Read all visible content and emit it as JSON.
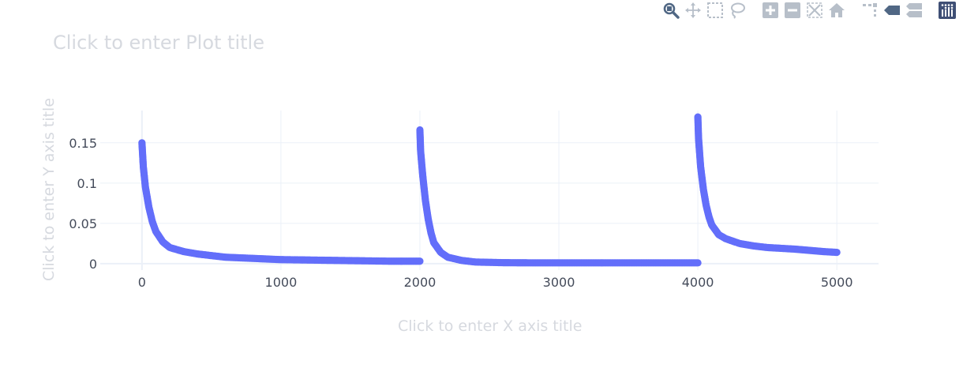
{
  "modebar": {
    "buttons": [
      {
        "name": "zoom-icon",
        "title": "Zoom",
        "active": true
      },
      {
        "name": "pan-icon",
        "title": "Pan"
      },
      {
        "name": "box-select-icon",
        "title": "Box Select"
      },
      {
        "name": "lasso-select-icon",
        "title": "Lasso Select"
      },
      {
        "name": "zoom-in-icon",
        "title": "Zoom in"
      },
      {
        "name": "zoom-out-icon",
        "title": "Zoom out"
      },
      {
        "name": "autoscale-icon",
        "title": "Autoscale"
      },
      {
        "name": "reset-axes-icon",
        "title": "Reset axes"
      },
      {
        "name": "spike-lines-icon",
        "title": "Toggle Spike Lines"
      },
      {
        "name": "hover-closest-icon",
        "title": "Show closest data on hover"
      },
      {
        "name": "hover-compare-icon",
        "title": "Compare data on hover"
      },
      {
        "name": "plotly-logo-icon",
        "title": "Produced with Plotly"
      }
    ]
  },
  "placeholders": {
    "plot_title": "Click to enter Plot title",
    "x_title": "Click to enter X axis title",
    "y_title": "Click to enter Y axis title"
  },
  "chart_data": {
    "type": "scatter",
    "title": "",
    "xlabel": "",
    "ylabel": "",
    "xlim": [
      -300,
      5300
    ],
    "ylim": [
      -0.008,
      0.19
    ],
    "x_ticks": [
      0,
      1000,
      2000,
      3000,
      4000,
      5000
    ],
    "x_tick_labels": [
      "0",
      "1000",
      "2000",
      "3000",
      "4000",
      "5000"
    ],
    "y_ticks": [
      0,
      0.05,
      0.1,
      0.15
    ],
    "y_tick_labels": [
      "0",
      "0.05",
      "0.1",
      "0.15"
    ],
    "grid": true,
    "colors": {
      "series": "#636efa",
      "grid": "#ebf0f8",
      "zeroline": "#ebf0f8"
    },
    "series": [
      {
        "x": [
          0,
          10,
          25,
          50,
          75,
          100,
          150,
          200,
          300,
          400,
          500,
          600,
          800,
          1000,
          1200,
          1400,
          1600,
          1800,
          2000
        ],
        "y": [
          0.15,
          0.12,
          0.095,
          0.07,
          0.052,
          0.04,
          0.027,
          0.02,
          0.015,
          0.012,
          0.01,
          0.008,
          0.0065,
          0.005,
          0.0045,
          0.004,
          0.0035,
          0.003,
          0.003
        ]
      },
      {
        "x": [
          2000,
          2005,
          2020,
          2040,
          2060,
          2080,
          2100,
          2150,
          2200,
          2300,
          2400,
          2600,
          2800,
          3000,
          3500,
          4000
        ],
        "y": [
          0.166,
          0.14,
          0.11,
          0.078,
          0.055,
          0.038,
          0.026,
          0.014,
          0.008,
          0.004,
          0.002,
          0.0012,
          0.001,
          0.001,
          0.001,
          0.001
        ]
      },
      {
        "x": [
          4000,
          4005,
          4020,
          4040,
          4060,
          4080,
          4100,
          4150,
          4200,
          4300,
          4400,
          4500,
          4600,
          4700,
          4800,
          4900,
          5000
        ],
        "y": [
          0.182,
          0.155,
          0.12,
          0.092,
          0.072,
          0.058,
          0.048,
          0.036,
          0.031,
          0.025,
          0.022,
          0.02,
          0.019,
          0.018,
          0.0165,
          0.015,
          0.014
        ]
      }
    ]
  }
}
